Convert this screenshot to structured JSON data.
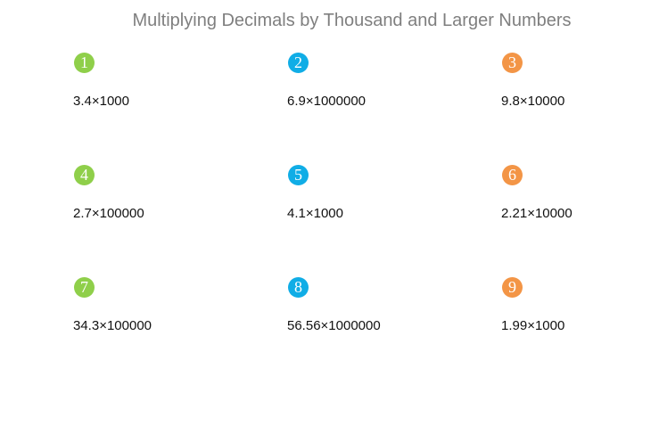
{
  "header": {
    "title": "Multiplying Decimals by Thousand and Larger Numbers"
  },
  "problems": [
    {
      "number": "1",
      "expression": "3.4×1000"
    },
    {
      "number": "2",
      "expression": "6.9×1000000"
    },
    {
      "number": "3",
      "expression": "9.8×10000"
    },
    {
      "number": "4",
      "expression": "2.7×100000"
    },
    {
      "number": "5",
      "expression": "4.1×1000"
    },
    {
      "number": "6",
      "expression": "2.21×10000"
    },
    {
      "number": "7",
      "expression": "34.3×100000"
    },
    {
      "number": "8",
      "expression": "56.56×1000000"
    },
    {
      "number": "9",
      "expression": "1.99×1000"
    }
  ]
}
